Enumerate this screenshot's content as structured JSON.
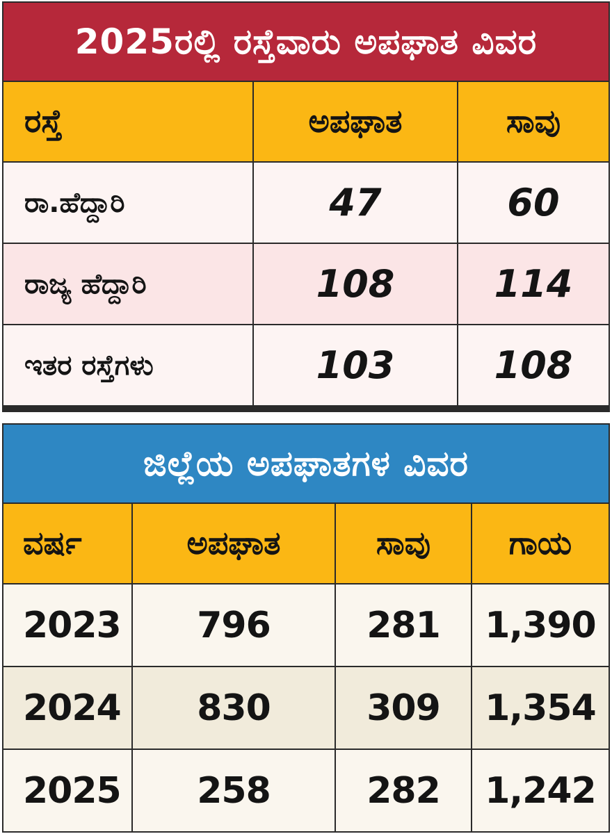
{
  "chart_data": [
    {
      "type": "table",
      "title": "2025ರಲ್ಲಿ ರಸ್ತೆವಾರು ಅಪಘಾತ ವಿವರ",
      "columns": [
        "ರಸ್ತೆ",
        "ಅಪಘಾತ",
        "ಸಾವು"
      ],
      "rows": [
        {
          "label": "ರಾ.ಹೆದ್ದಾರಿ",
          "values": [
            "47",
            "60"
          ]
        },
        {
          "label": "ರಾಜ್ಯ ಹೆದ್ದಾರಿ",
          "values": [
            "108",
            "114"
          ]
        },
        {
          "label": "ಇತರ ರಸ್ತೆಗಳು",
          "values": [
            "103",
            "108"
          ]
        }
      ],
      "header_color": "#fbb714",
      "title_color": "#b6283a"
    },
    {
      "type": "table",
      "title": "ಜಿಲ್ಲೆಯ ಅಪಘಾತಗಳ ವಿವರ",
      "columns": [
        "ವರ್ಷ",
        "ಅಪಘಾತ",
        "ಸಾವು",
        "ಗಾಯ"
      ],
      "rows": [
        {
          "label": "2023",
          "values": [
            "796",
            "281",
            "1,390"
          ]
        },
        {
          "label": "2024",
          "values": [
            "830",
            "309",
            "1,354"
          ]
        },
        {
          "label": "2025",
          "values": [
            "258",
            "282",
            "1,242"
          ]
        }
      ],
      "header_color": "#fbb714",
      "title_color": "#2e87c3"
    }
  ]
}
